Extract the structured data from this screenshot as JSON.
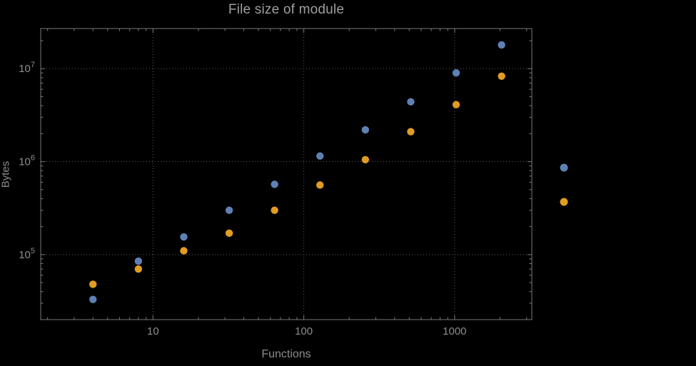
{
  "chart_data": {
    "type": "scatter",
    "title": "File size of module",
    "xlabel": "Functions",
    "ylabel": "Bytes",
    "x_scale": "log",
    "y_scale": "log",
    "xlim": [
      1.8,
      3250
    ],
    "ylim": [
      20000,
      27000000
    ],
    "grid": "dotted",
    "legend_position": "right-center",
    "x_tick_values": [
      10,
      100,
      1000
    ],
    "x_tick_labels": [
      "10",
      "100",
      "1000"
    ],
    "y_tick_values": [
      100000,
      1000000,
      10000000
    ],
    "y_tick_mantissa": "10",
    "y_tick_exponents": [
      "5",
      "6",
      "7"
    ],
    "x": [
      4,
      8,
      16,
      32,
      64,
      128,
      256,
      512,
      1024,
      2048
    ],
    "series": [
      {
        "name": "",
        "color": "#5E81B5",
        "values": [
          33000,
          85000,
          155000,
          300000,
          570000,
          1150000,
          2200000,
          4400000,
          9000000,
          18000000
        ]
      },
      {
        "name": "",
        "color": "#E19C24",
        "values": [
          48000,
          70000,
          110000,
          170000,
          300000,
          560000,
          1050000,
          2100000,
          4100000,
          8300000
        ]
      }
    ]
  },
  "colors": {
    "background": "#000000",
    "frame": "#7a7a7a",
    "grid": "#5d5d5d",
    "tick_label": "#8d8d8d",
    "title": "#9f9f9f"
  }
}
